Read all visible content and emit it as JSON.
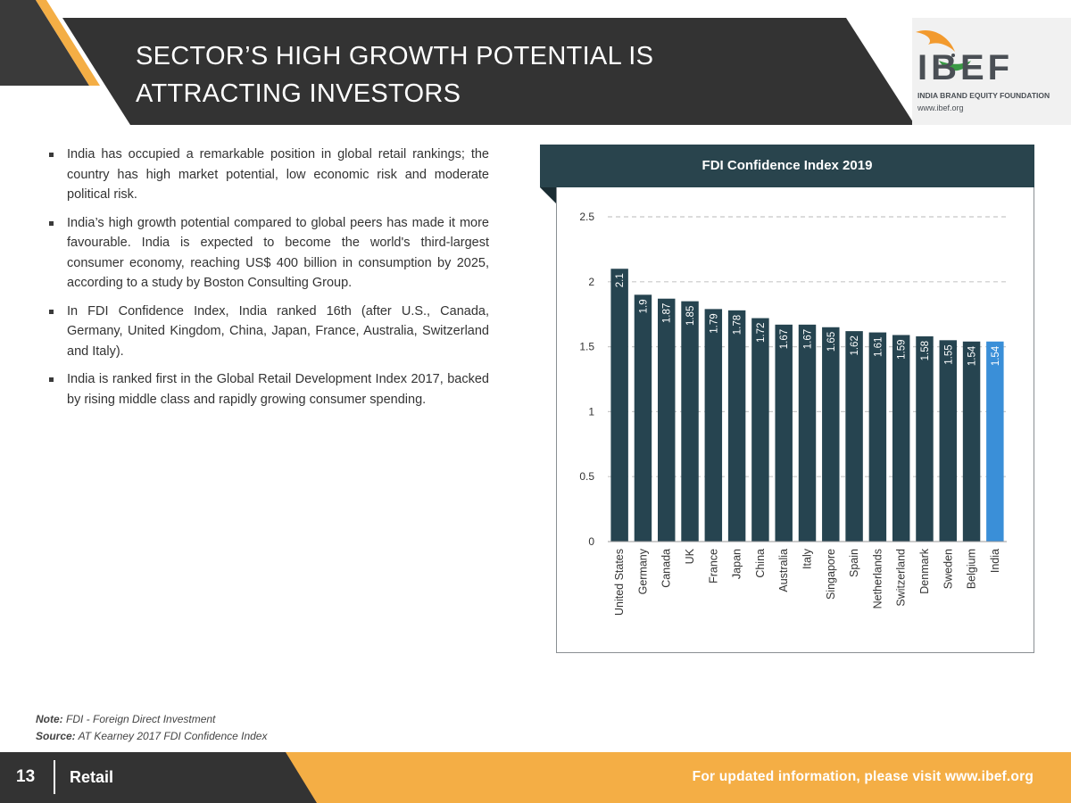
{
  "header": {
    "title_line1": "SECTOR’S HIGH GROWTH POTENTIAL IS",
    "title_line2": "ATTRACTING INVESTORS",
    "logo_text": "IBEF",
    "logo_subtitle": "INDIA BRAND EQUITY FOUNDATION",
    "logo_url": "www.ibef.org"
  },
  "bullets": [
    "India has occupied a remarkable position in global retail rankings; the country has high market potential, low economic risk and moderate political risk.",
    "India’s high growth potential compared to global peers has made it more favourable. India is expected to become the world's third-largest consumer economy, reaching US$ 400 billion in consumption by 2025, according to a study by Boston Consulting Group.",
    "In FDI Confidence Index, India ranked 16th (after U.S., Canada, Germany, United Kingdom, China, Japan, France, Australia, Switzerland and Italy).",
    "India is ranked first in the Global Retail Development Index 2017, backed by rising middle class and rapidly growing consumer spending."
  ],
  "chart_data": {
    "type": "bar",
    "title": "FDI Confidence Index 2019",
    "categories": [
      "United States",
      "Germany",
      "Canada",
      "UK",
      "France",
      "Japan",
      "China",
      "Australia",
      "Italy",
      "Singapore",
      "Spain",
      "Netherlands",
      "Switzerland",
      "Denmark",
      "Sweden",
      "Belgium",
      "India"
    ],
    "values": [
      2.1,
      1.9,
      1.87,
      1.85,
      1.79,
      1.78,
      1.72,
      1.67,
      1.67,
      1.65,
      1.62,
      1.61,
      1.59,
      1.58,
      1.55,
      1.54,
      1.54
    ],
    "value_labels": [
      "2.1",
      "1.9",
      "1.87",
      "1.85",
      "1.79",
      "1.78",
      "1.72",
      "1.67",
      "1.67",
      "1.65",
      "1.62",
      "1.61",
      "1.59",
      "1.58",
      "1.55",
      "1.54",
      "1.54"
    ],
    "ylim": [
      0,
      2.5
    ],
    "yticks": [
      "0",
      "0.5",
      "1",
      "1.5",
      "2",
      "2.5"
    ],
    "ytick_values": [
      0,
      0.5,
      1,
      1.5,
      2,
      2.5
    ],
    "grid": "horizontal dashed",
    "highlight_category": "India",
    "bar_color": "#264450",
    "highlight_color": "#3a8fd8"
  },
  "notes": {
    "note_label": "Note:",
    "note_text": "FDI - Foreign Direct Investment",
    "source_label": "Source:",
    "source_text": "AT Kearney 2017 FDI Confidence Index"
  },
  "footer": {
    "page_number": "13",
    "section": "Retail",
    "link_text": "For updated information, please visit www.ibef.org"
  },
  "colors": {
    "dark": "#333333",
    "accent_orange": "#f4ae45",
    "header_band": "#29444d"
  }
}
